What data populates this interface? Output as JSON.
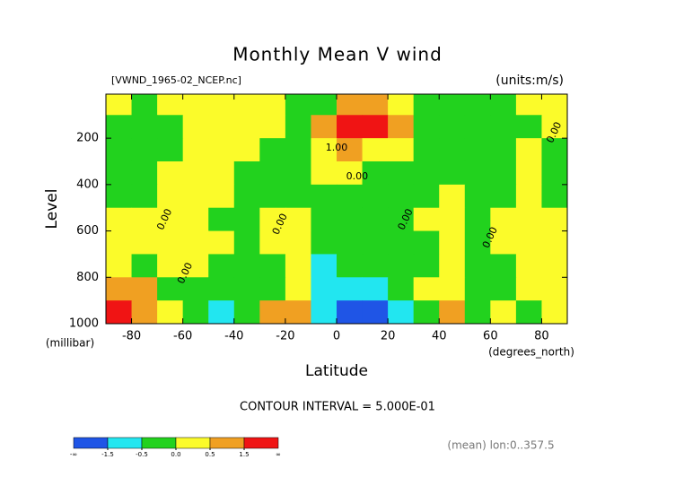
{
  "chart_data": {
    "type": "contour",
    "title": "Monthly Mean V wind",
    "subtitle": "[VWND_1965-02_NCEP.nc]",
    "units": "(units:m/s)",
    "xlabel": "Latitude",
    "xunits": "(degrees_north)",
    "ylabel": "Level",
    "yunits": "(millibar)",
    "footer": "CONTOUR INTERVAL = 5.000E-01",
    "note": "(mean) lon:0..357.5",
    "xlim": [
      -90,
      90
    ],
    "xticks": [
      -80,
      -60,
      -40,
      -20,
      0,
      20,
      40,
      60,
      80
    ],
    "ylim": [
      1000,
      10
    ],
    "yticks": [
      200,
      400,
      600,
      800,
      1000
    ],
    "x": [
      -85,
      -75,
      -65,
      -55,
      -45,
      -35,
      -25,
      -15,
      -5,
      5,
      15,
      25,
      35,
      45,
      55,
      65,
      75,
      85
    ],
    "y": [
      50,
      150,
      250,
      350,
      450,
      550,
      650,
      750,
      850,
      950
    ],
    "z": [
      [
        0.1,
        -0.2,
        0.2,
        0.2,
        0.2,
        0.2,
        0.2,
        -0.2,
        -0.2,
        0.6,
        0.6,
        0.3,
        -0.2,
        -0.2,
        -0.2,
        -0.2,
        0.2,
        0.2
      ],
      [
        -0.2,
        -0.2,
        -0.2,
        0.2,
        0.2,
        0.2,
        0.2,
        -0.2,
        0.7,
        2.0,
        2.0,
        0.8,
        -0.2,
        -0.2,
        -0.2,
        -0.2,
        -0.2,
        0.2
      ],
      [
        -0.2,
        -0.2,
        -0.2,
        0.2,
        0.2,
        0.2,
        -0.2,
        -0.2,
        0.2,
        0.6,
        0.3,
        0.2,
        -0.2,
        -0.2,
        -0.2,
        -0.2,
        0.2,
        -0.2
      ],
      [
        -0.2,
        -0.2,
        0.2,
        0.2,
        0.2,
        -0.2,
        -0.2,
        -0.2,
        0.2,
        0.2,
        -0.2,
        -0.2,
        -0.2,
        -0.2,
        -0.2,
        -0.2,
        0.2,
        -0.2
      ],
      [
        -0.2,
        -0.2,
        0.2,
        0.2,
        0.2,
        -0.2,
        -0.2,
        -0.2,
        -0.2,
        -0.2,
        -0.2,
        -0.2,
        -0.2,
        0.2,
        -0.2,
        -0.2,
        0.2,
        -0.2
      ],
      [
        0.2,
        0.2,
        0.2,
        0.2,
        -0.2,
        -0.2,
        0.2,
        0.2,
        -0.2,
        -0.2,
        -0.2,
        -0.2,
        0.2,
        0.2,
        -0.2,
        0.2,
        0.2,
        0.2
      ],
      [
        0.2,
        0.2,
        0.2,
        0.2,
        0.2,
        -0.2,
        0.2,
        0.2,
        -0.2,
        -0.2,
        -0.2,
        -0.2,
        -0.2,
        0.2,
        -0.2,
        0.2,
        0.2,
        0.2
      ],
      [
        0.3,
        -0.2,
        0.2,
        0.2,
        -0.2,
        -0.2,
        -0.2,
        0.2,
        -0.6,
        -0.2,
        -0.2,
        -0.2,
        -0.2,
        0.2,
        -0.2,
        -0.2,
        0.2,
        0.2
      ],
      [
        0.8,
        0.6,
        -0.2,
        -0.2,
        -0.2,
        -0.2,
        -0.2,
        0.2,
        -0.7,
        -0.7,
        -0.7,
        -0.2,
        0.2,
        0.3,
        -0.2,
        -0.2,
        0.2,
        0.2
      ],
      [
        1.7,
        0.7,
        0.2,
        -0.2,
        -0.7,
        -0.2,
        0.6,
        0.6,
        -0.7,
        -1.7,
        -1.7,
        -0.7,
        -0.2,
        0.7,
        -0.2,
        0.2,
        -0.2,
        0.2
      ]
    ],
    "colorbar": {
      "colors": [
        "#1f55e6",
        "#22e6f0",
        "#22d21e",
        "#fbfb2a",
        "#f0a022",
        "#f01414"
      ],
      "levels": [
        -1.5,
        -0.5,
        {
          "value": 0,
          "label": "0.0"
        },
        0.5,
        1.5
      ],
      "low_label": "-∞",
      "high_label": "∞"
    },
    "annotations": [
      {
        "text": "1.00",
        "x": 0,
        "y": 242
      },
      {
        "text": "0.00",
        "x": 8,
        "y": 366
      },
      {
        "text": "0.00",
        "x": -67,
        "y": 551
      },
      {
        "text": "0.00",
        "x": -22,
        "y": 571
      },
      {
        "text": "0.00",
        "x": 27,
        "y": 551
      },
      {
        "text": "0.00",
        "x": 60,
        "y": 629
      },
      {
        "text": "0.00",
        "x": -59,
        "y": 783
      },
      {
        "text": "0.00",
        "x": 85,
        "y": 176
      }
    ]
  }
}
